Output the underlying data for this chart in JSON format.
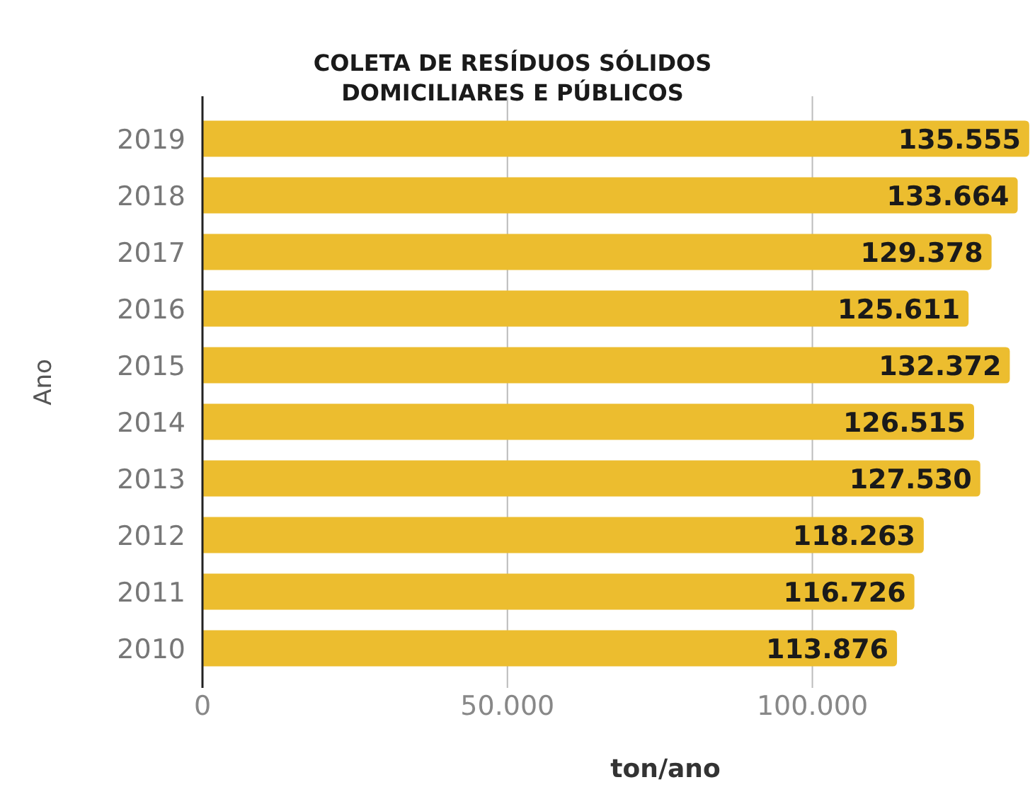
{
  "chart_data": {
    "type": "bar",
    "orientation": "horizontal",
    "title": "COLETA DE RESÍDUOS SÓLIDOS\nDOMICILIARES E PÚBLICOS",
    "xlabel": "ton/ano",
    "ylabel": "Ano",
    "categories": [
      "2019",
      "2018",
      "2017",
      "2016",
      "2015",
      "2014",
      "2013",
      "2012",
      "2011",
      "2010"
    ],
    "values": [
      135555,
      133664,
      129378,
      125611,
      132372,
      126515,
      127530,
      118263,
      116726,
      113876
    ],
    "value_labels": [
      "135.555",
      "133.664",
      "129.378",
      "125.611",
      "132.372",
      "126.515",
      "127.530",
      "118.263",
      "116.726",
      "113.876"
    ],
    "color": "#ecbd2f",
    "xlim": [
      0,
      136500
    ],
    "xticks": [
      0,
      {
        "value": 50000,
        "label": "50.000"
      },
      {
        "value": 100000,
        "label": "100.000"
      }
    ],
    "grid": "x"
  }
}
